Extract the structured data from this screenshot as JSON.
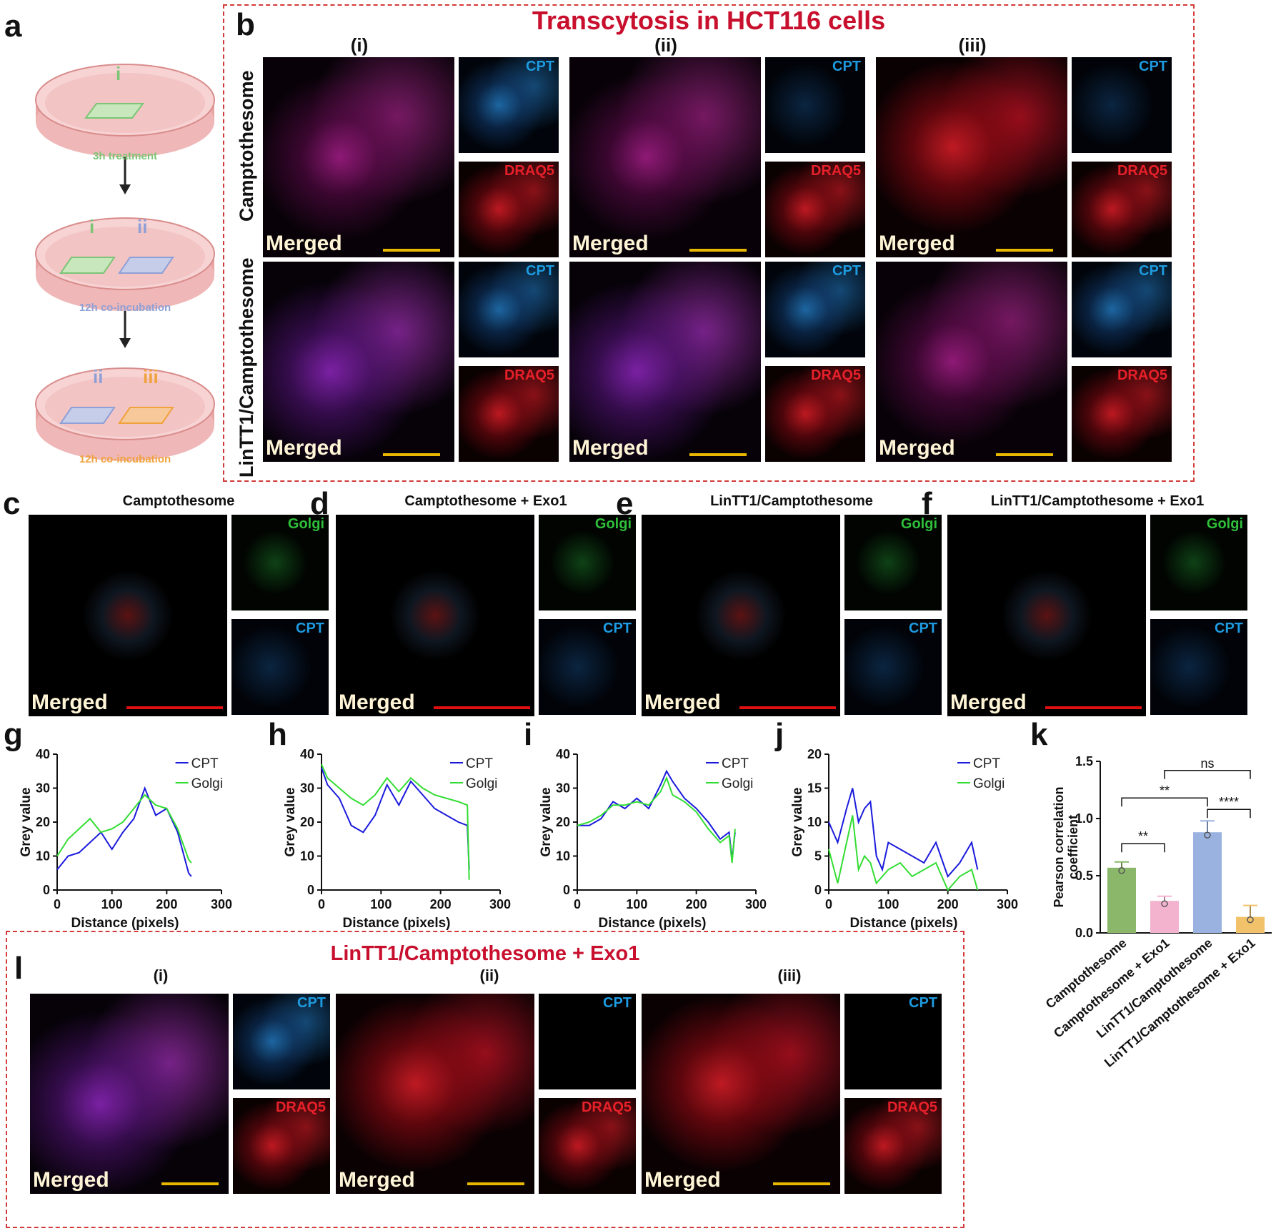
{
  "panel_labels": {
    "a": "a",
    "b": "b",
    "c": "c",
    "d": "d",
    "e": "e",
    "f": "f",
    "g": "g",
    "h": "h",
    "i": "i",
    "j": "j",
    "k": "k",
    "l": "l"
  },
  "panel_a": {
    "dish_labels": [
      [
        "i"
      ],
      [
        "i",
        "ii"
      ],
      [
        "ii",
        "iii"
      ]
    ],
    "captions": [
      "3h treatment",
      "12h co-incubation",
      "12h co-incubation"
    ],
    "colors": {
      "i": "#7cc576",
      "ii": "#8fa0d6",
      "iii": "#f0a23c",
      "dish": "#f3c9c9",
      "dish_rim": "#d98c8c"
    }
  },
  "panel_b": {
    "title": "Transcytosis in HCT116 cells",
    "columns": [
      "(i)",
      "(ii)",
      "(iii)"
    ],
    "rows": [
      "Camptothesome",
      "LinTT1/Camptothesome"
    ],
    "merged_label": "Merged",
    "channels": [
      "CPT",
      "DRAQ5"
    ]
  },
  "panels_cf": {
    "titles": [
      "Camptothesome",
      "Camptothesome + Exo1",
      "LinTT1/Camptothesome",
      "LinTT1/Camptothesome + Exo1"
    ],
    "channels": [
      "Golgi",
      "CPT"
    ],
    "merged_label": "Merged"
  },
  "panel_l": {
    "title": "LinTT1/Camptothesome + Exo1",
    "columns": [
      "(i)",
      "(ii)",
      "(iii)"
    ],
    "channels": [
      "CPT",
      "DRAQ5"
    ],
    "merged_label": "Merged"
  },
  "colors": {
    "cpt": "#1e9be0",
    "draq5": "#e8202a",
    "golgi": "#2fbf3a",
    "merged": "#fff5d6",
    "scale_yellow": "#e8b800",
    "scale_red": "#e01010",
    "title_red": "#c8102e",
    "line_cpt": "#1a1adc",
    "line_golgi": "#33dd33"
  },
  "chart_data": [
    {
      "type": "line",
      "id": "g",
      "xlabel": "Distance (pixels)",
      "ylabel": "Grey value",
      "xlim": [
        0,
        300
      ],
      "ylim": [
        0,
        40
      ],
      "xticks": [
        "0",
        "100",
        "200",
        "300"
      ],
      "yticks": [
        "0",
        "10",
        "20",
        "30",
        "40"
      ],
      "series": [
        {
          "name": "CPT",
          "x": [
            0,
            20,
            40,
            60,
            80,
            100,
            120,
            140,
            160,
            180,
            200,
            220,
            240,
            245
          ],
          "y": [
            6,
            10,
            11,
            14,
            17,
            12,
            17,
            21,
            30,
            22,
            24,
            17,
            5,
            4
          ]
        },
        {
          "name": "Golgi",
          "x": [
            0,
            20,
            40,
            60,
            80,
            100,
            120,
            140,
            160,
            180,
            200,
            220,
            240,
            245
          ],
          "y": [
            10,
            15,
            18,
            21,
            17,
            18,
            20,
            24,
            28,
            25,
            24,
            18,
            9,
            8
          ]
        }
      ]
    },
    {
      "type": "line",
      "id": "h",
      "xlabel": "Distance (pixels)",
      "ylabel": "Grey value",
      "xlim": [
        0,
        300
      ],
      "ylim": [
        0,
        40
      ],
      "xticks": [
        "0",
        "100",
        "200",
        "300"
      ],
      "yticks": [
        "0",
        "10",
        "20",
        "30",
        "40"
      ],
      "series": [
        {
          "name": "CPT",
          "x": [
            0,
            10,
            30,
            50,
            70,
            90,
            110,
            130,
            150,
            170,
            190,
            210,
            230,
            245,
            248
          ],
          "y": [
            36,
            31,
            27,
            19,
            17,
            22,
            31,
            25,
            32,
            28,
            24,
            22,
            20,
            19,
            6
          ]
        },
        {
          "name": "Golgi",
          "x": [
            0,
            10,
            30,
            50,
            70,
            90,
            110,
            130,
            150,
            170,
            190,
            210,
            230,
            245,
            248
          ],
          "y": [
            37,
            33,
            30,
            27,
            25,
            28,
            33,
            29,
            33,
            30,
            28,
            27,
            26,
            25,
            3
          ]
        }
      ]
    },
    {
      "type": "line",
      "id": "i",
      "xlabel": "Distance (pixels)",
      "ylabel": "Grey value",
      "xlim": [
        0,
        300
      ],
      "ylim": [
        0,
        40
      ],
      "xticks": [
        "0",
        "100",
        "200",
        "300"
      ],
      "yticks": [
        "0",
        "10",
        "20",
        "30",
        "40"
      ],
      "series": [
        {
          "name": "CPT",
          "x": [
            0,
            20,
            40,
            60,
            80,
            100,
            120,
            140,
            150,
            160,
            180,
            200,
            220,
            240,
            255,
            260,
            265
          ],
          "y": [
            19,
            19,
            21,
            26,
            24,
            27,
            24,
            31,
            35,
            32,
            27,
            24,
            20,
            15,
            17,
            9,
            17
          ]
        },
        {
          "name": "Golgi",
          "x": [
            0,
            20,
            40,
            60,
            80,
            100,
            120,
            140,
            150,
            160,
            180,
            200,
            220,
            240,
            255,
            260,
            265
          ],
          "y": [
            19,
            20,
            22,
            25,
            25,
            26,
            25,
            29,
            33,
            28,
            26,
            23,
            18,
            14,
            16,
            8,
            18
          ]
        }
      ]
    },
    {
      "type": "line",
      "id": "j",
      "xlabel": "Distance (pixels)",
      "ylabel": "Grey value",
      "xlim": [
        0,
        300
      ],
      "ylim": [
        0,
        20
      ],
      "xticks": [
        "0",
        "100",
        "200",
        "300"
      ],
      "yticks": [
        "0",
        "5",
        "10",
        "15",
        "20"
      ],
      "series": [
        {
          "name": "CPT",
          "x": [
            0,
            15,
            30,
            40,
            50,
            60,
            70,
            80,
            90,
            100,
            120,
            140,
            160,
            180,
            200,
            220,
            240,
            250
          ],
          "y": [
            10,
            7,
            12,
            15,
            10,
            12,
            13,
            5,
            3,
            7,
            6,
            5,
            4,
            7,
            2,
            4,
            7,
            3
          ]
        },
        {
          "name": "Golgi",
          "x": [
            0,
            15,
            30,
            40,
            50,
            60,
            70,
            80,
            90,
            100,
            120,
            140,
            160,
            180,
            200,
            220,
            240,
            250
          ],
          "y": [
            6,
            1,
            7,
            11,
            3,
            5,
            4,
            1,
            2,
            3,
            4,
            2,
            3,
            4,
            0,
            2,
            3,
            0
          ]
        }
      ]
    },
    {
      "type": "bar",
      "id": "k",
      "ylabel": "Pearson correlation coefficient",
      "ylim": [
        0,
        1.5
      ],
      "yticks": [
        "0.0",
        "0.5",
        "1.0",
        "1.5"
      ],
      "categories": [
        "Camptothesome",
        "Camptothesome + Exo1",
        "LinTT1/Camptothesome",
        "LinTT1/Camptothesome + Exo1"
      ],
      "values": [
        0.57,
        0.28,
        0.88,
        0.14
      ],
      "errors": [
        0.05,
        0.04,
        0.1,
        0.1
      ],
      "colors": [
        "#8ab76a",
        "#f3b3cf",
        "#9ab2e0",
        "#f1c26a"
      ],
      "significance": [
        {
          "pair": [
            0,
            1
          ],
          "label": "**"
        },
        {
          "pair": [
            0,
            2
          ],
          "label": "**"
        },
        {
          "pair": [
            2,
            3
          ],
          "label": "****"
        },
        {
          "pair": [
            1,
            3
          ],
          "label": "ns"
        }
      ]
    }
  ]
}
